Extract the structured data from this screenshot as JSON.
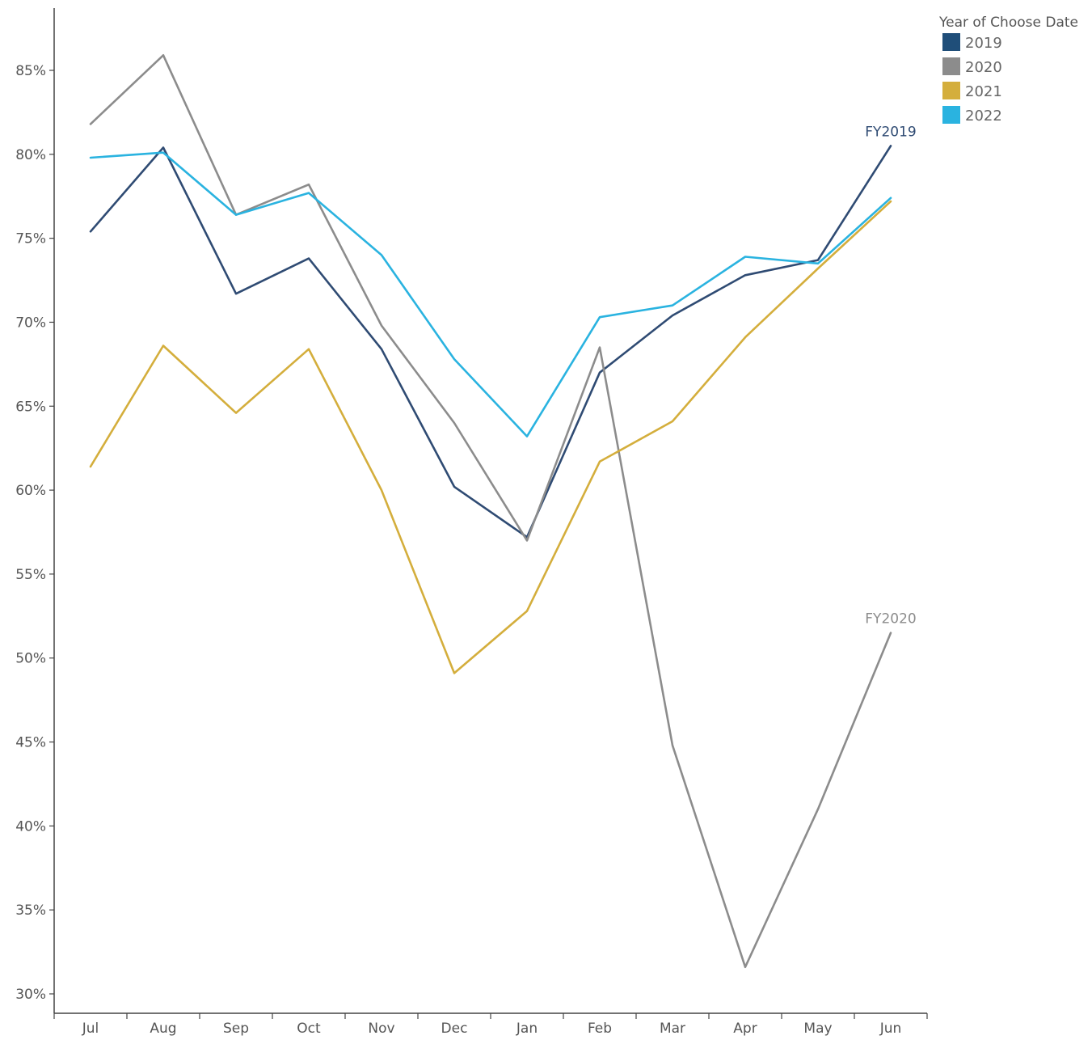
{
  "chart_data": {
    "type": "line",
    "categories": [
      "Jul",
      "Aug",
      "Sep",
      "Oct",
      "Nov",
      "Dec",
      "Jan",
      "Feb",
      "Mar",
      "Apr",
      "May",
      "Jun"
    ],
    "ylim": [
      0.3,
      0.88
    ],
    "yticks": [
      0.3,
      0.35,
      0.4,
      0.45,
      0.5,
      0.55,
      0.6,
      0.65,
      0.7,
      0.75,
      0.8,
      0.85
    ],
    "ytick_labels": [
      "30%",
      "35%",
      "40%",
      "45%",
      "50%",
      "55%",
      "60%",
      "65%",
      "70%",
      "75%",
      "80%",
      "85%"
    ],
    "grid": false,
    "legend": {
      "title": "Year of Choose Date",
      "position": "top-right",
      "entries": [
        {
          "label": "2019",
          "color": "#1f4e79"
        },
        {
          "label": "2020",
          "color": "#8c8c8c"
        },
        {
          "label": "2021",
          "color": "#d4ae3c"
        },
        {
          "label": "2022",
          "color": "#2ab3e0"
        }
      ]
    },
    "series": [
      {
        "name": "2019",
        "color": "#2f4b73",
        "values": [
          0.754,
          0.804,
          0.717,
          0.738,
          0.684,
          0.602,
          0.572,
          0.67,
          0.704,
          0.728,
          0.737,
          0.805
        ]
      },
      {
        "name": "2020",
        "color": "#8c8c8c",
        "values": [
          0.818,
          0.859,
          0.764,
          0.782,
          0.698,
          0.64,
          0.57,
          0.685,
          0.448,
          0.316,
          0.41,
          0.515
        ]
      },
      {
        "name": "2021",
        "color": "#d4ae3c",
        "values": [
          0.614,
          0.686,
          0.646,
          0.684,
          0.6,
          0.491,
          0.528,
          0.617,
          0.641,
          0.691,
          0.732,
          0.772
        ]
      },
      {
        "name": "2022",
        "color": "#2ab3e0",
        "values": [
          0.798,
          0.801,
          0.764,
          0.777,
          0.74,
          0.678,
          0.632,
          0.703,
          0.71,
          0.739,
          0.735,
          0.774
        ]
      }
    ],
    "annotations": [
      {
        "text": "FY2019",
        "series": "2019",
        "color": "#2f4b73"
      },
      {
        "text": "FY2020",
        "series": "2020",
        "color": "#8c8c8c"
      }
    ]
  }
}
